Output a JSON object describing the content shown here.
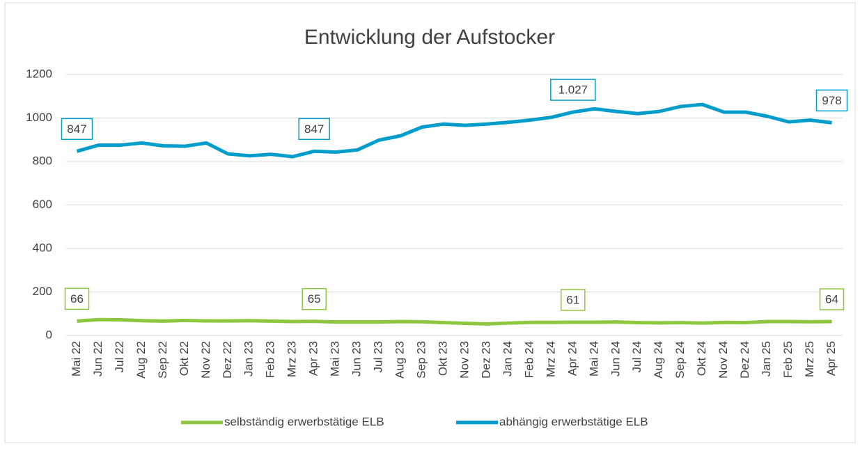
{
  "chart_data": {
    "type": "line",
    "title": "Entwicklung der Aufstocker",
    "categories": [
      "Mai 22",
      "Jun 22",
      "Jul 22",
      "Aug 22",
      "Sep 22",
      "Okt 22",
      "Nov 22",
      "Dez 22",
      "Jan 23",
      "Feb 23",
      "Mrz 23",
      "Apr 23",
      "Mai 23",
      "Jun 23",
      "Jul 23",
      "Aug 23",
      "Sep 23",
      "Okt 23",
      "Nov 23",
      "Dez 23",
      "Jan 24",
      "Feb 24",
      "Mrz 24",
      "Apr 24",
      "Mai 24",
      "Jun 24",
      "Jul 24",
      "Aug 24",
      "Sep 24",
      "Okt 24",
      "Nov 24",
      "Dez 24",
      "Jan 25",
      "Feb 25",
      "Mrz 25",
      "Apr 25"
    ],
    "series": [
      {
        "name": "selbständig erwerbstätige ELB",
        "color": "#8dc63f",
        "values": [
          66,
          73,
          72,
          68,
          66,
          69,
          67,
          67,
          68,
          66,
          64,
          65,
          62,
          62,
          62,
          64,
          63,
          59,
          56,
          53,
          57,
          60,
          60,
          61,
          61,
          62,
          59,
          58,
          59,
          57,
          60,
          59,
          64,
          64,
          63,
          64
        ],
        "value_labels": [
          "66",
          null,
          null,
          null,
          null,
          null,
          null,
          null,
          null,
          null,
          null,
          "65",
          null,
          null,
          null,
          null,
          null,
          null,
          null,
          null,
          null,
          null,
          null,
          "61",
          null,
          null,
          null,
          null,
          null,
          null,
          null,
          null,
          null,
          null,
          null,
          "64"
        ]
      },
      {
        "name": "abhängig erwerbstätige ELB",
        "color": "#009ccc",
        "values": [
          847,
          875,
          875,
          885,
          872,
          870,
          885,
          835,
          826,
          833,
          822,
          847,
          843,
          853,
          898,
          918,
          958,
          972,
          966,
          972,
          980,
          990,
          1003,
          1027,
          1042,
          1030,
          1020,
          1030,
          1053,
          1062,
          1027,
          1027,
          1008,
          982,
          990,
          978
        ],
        "value_labels": [
          "847",
          null,
          null,
          null,
          null,
          null,
          null,
          null,
          null,
          null,
          null,
          "847",
          null,
          null,
          null,
          null,
          null,
          null,
          null,
          null,
          null,
          null,
          null,
          "1.027",
          null,
          null,
          null,
          null,
          null,
          null,
          null,
          null,
          null,
          null,
          null,
          "978"
        ]
      }
    ],
    "ylim": [
      0,
      1200
    ],
    "yticks": [
      0,
      200,
      400,
      600,
      800,
      1000,
      1200
    ],
    "grid": true,
    "legend": "bottom"
  }
}
